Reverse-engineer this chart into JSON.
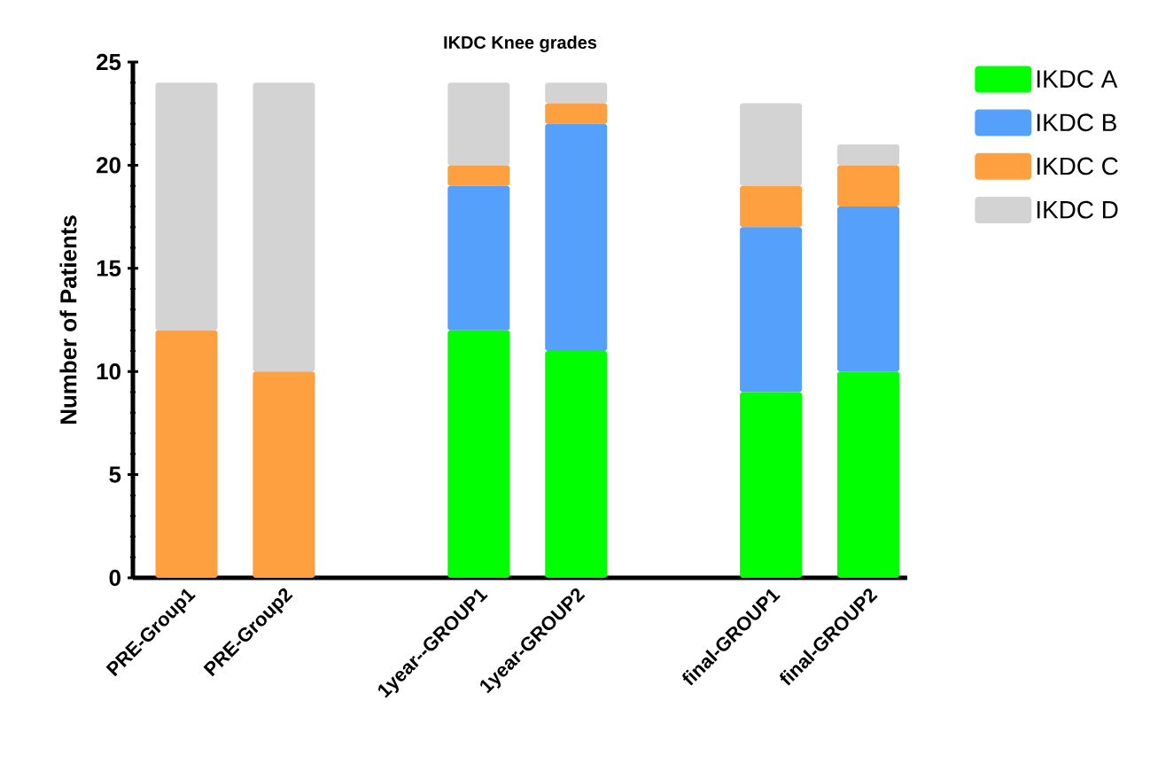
{
  "chart_data": {
    "type": "bar",
    "stacked": true,
    "title": "IKDC Knee grades",
    "ylabel": "Number of Patients",
    "categories": [
      "PRE-Group1",
      "PRE-Group2",
      null,
      "1year--GROUP1",
      "1year-GROUP2",
      null,
      "final-GROUP1",
      "final-GROUP2"
    ],
    "series": [
      {
        "name": "IKDC A",
        "color": "#00ff00",
        "values": [
          0,
          0,
          null,
          12,
          11,
          null,
          9,
          10
        ]
      },
      {
        "name": "IKDC B",
        "color": "#55a0fb",
        "values": [
          0,
          0,
          null,
          7,
          11,
          null,
          8,
          8
        ]
      },
      {
        "name": "IKDC C",
        "color": "#ffa040",
        "values": [
          12,
          10,
          null,
          1,
          1,
          null,
          2,
          2
        ]
      },
      {
        "name": "IKDC D",
        "color": "#d3d3d3",
        "values": [
          12,
          14,
          null,
          4,
          1,
          null,
          4,
          1
        ]
      }
    ],
    "ylim": [
      0,
      25
    ],
    "yticks": [
      0,
      5,
      10,
      15,
      20,
      25
    ],
    "grid": false,
    "legend": "right"
  }
}
